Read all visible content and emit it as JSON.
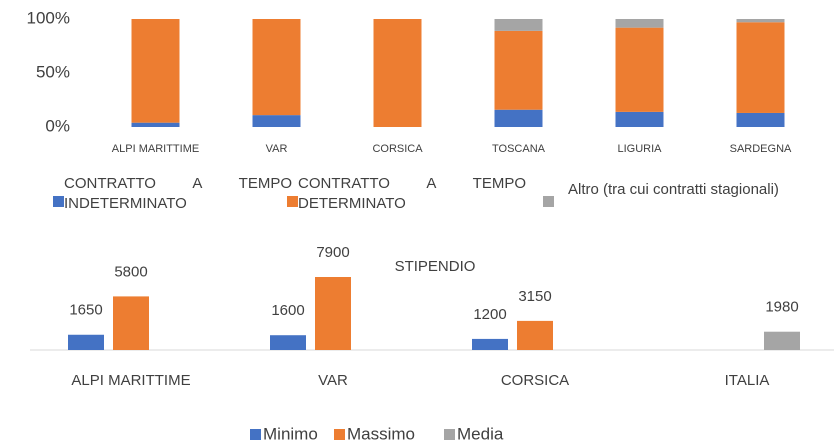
{
  "chart_data": [
    {
      "type": "bar",
      "stacked": true,
      "categories": [
        "ALPI MARITTIME",
        "VAR",
        "CORSICA",
        "TOSCANA",
        "LIGURIA",
        "SARDEGNA"
      ],
      "series": [
        {
          "name": "CONTRATTO A TEMPO INDETERMINATO",
          "color": "#4472c4",
          "values": [
            4,
            11,
            0,
            16,
            14,
            13
          ]
        },
        {
          "name": "CONTRATTO A TEMPO DETERMINATO",
          "color": "#ed7d31",
          "values": [
            96,
            89,
            100,
            73,
            78,
            84
          ]
        },
        {
          "name": "Altro (tra cui contratti stagionali)",
          "color": "#a5a5a5",
          "values": [
            0,
            0,
            0,
            11,
            8,
            3
          ]
        }
      ],
      "ylim": [
        0,
        100
      ],
      "yticks": [
        {
          "value": 0,
          "label": "0%"
        },
        {
          "value": 50,
          "label": "50%"
        },
        {
          "value": 100,
          "label": "100%"
        }
      ],
      "grid": false,
      "legend": "bottom"
    },
    {
      "type": "bar",
      "stacked": false,
      "title": "STIPENDIO",
      "categories": [
        "ALPI MARITTIME",
        "VAR",
        "CORSICA",
        "ITALIA"
      ],
      "series": [
        {
          "name": "Minimo",
          "color": "#4472c4",
          "values": [
            1650,
            1600,
            1200,
            null
          ]
        },
        {
          "name": "Massimo",
          "color": "#ed7d31",
          "values": [
            5800,
            7900,
            3150,
            null
          ]
        },
        {
          "name": "Media",
          "color": "#a5a5a5",
          "values": [
            null,
            null,
            null,
            1980
          ]
        }
      ],
      "data_labels": true,
      "legend": "bottom"
    }
  ]
}
